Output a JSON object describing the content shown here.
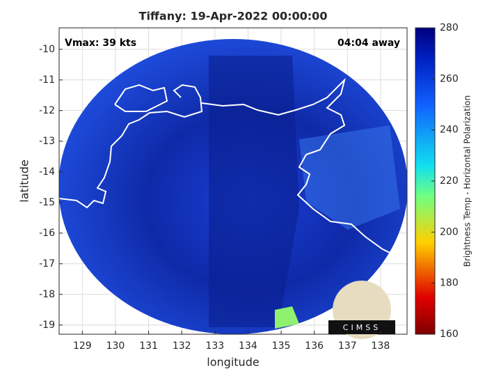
{
  "title": "Tiffany: 19-Apr-2022 00:00:00",
  "annotations": {
    "vmax": "Vmax: 39 kts",
    "time_away": "04:04 away"
  },
  "x_axis": {
    "label": "longitude",
    "lim": [
      128.3,
      138.8
    ],
    "ticks": [
      129,
      130,
      131,
      132,
      133,
      134,
      135,
      136,
      137,
      138
    ]
  },
  "y_axis": {
    "label": "latitude",
    "lim": [
      -19.3,
      -9.3
    ],
    "ticks": [
      -19,
      -18,
      -17,
      -16,
      -15,
      -14,
      -13,
      -12,
      -11,
      -10
    ]
  },
  "colorbar": {
    "label": "Brightness Temp - Horizontal Polarization",
    "lim": [
      160,
      280
    ],
    "ticks": [
      160,
      180,
      200,
      220,
      240,
      260,
      280
    ]
  },
  "logo": "CIMSS"
}
